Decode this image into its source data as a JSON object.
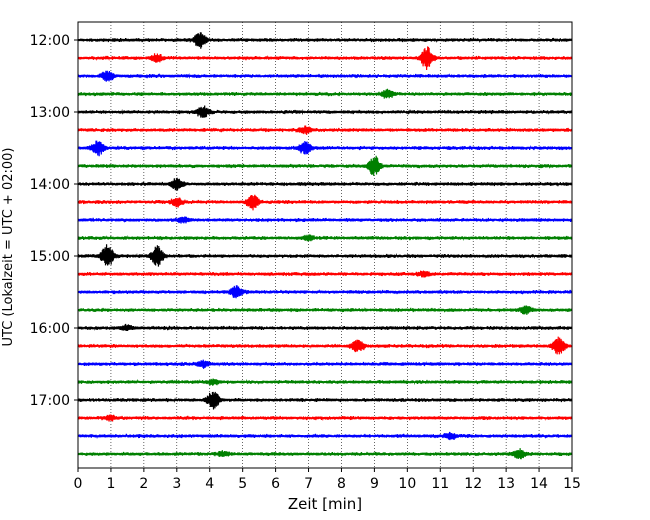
{
  "chart_data": {
    "type": "line",
    "title": "",
    "xlabel": "Zeit  [min]",
    "ylabel": "UTC (Lokalzeit = UTC + 02:00)",
    "xlim": [
      0,
      15
    ],
    "x_ticks": [
      "0",
      "1",
      "2",
      "3",
      "4",
      "5",
      "6",
      "7",
      "8",
      "9",
      "10",
      "11",
      "12",
      "13",
      "14",
      "15"
    ],
    "y_ticks": [
      "12:00",
      "13:00",
      "14:00",
      "15:00",
      "16:00",
      "17:00"
    ],
    "grid": "vertical dotted",
    "trace_interval_minutes": 15,
    "trace_colors": [
      "#000000",
      "#ff0000",
      "#0000ff",
      "#008000"
    ],
    "traces": [
      {
        "start": "12:00",
        "color": "#000000",
        "events": [
          [
            3.7,
            1.0
          ]
        ]
      },
      {
        "start": "12:15",
        "color": "#ff0000",
        "events": [
          [
            2.4,
            0.5
          ],
          [
            10.6,
            1.4
          ]
        ]
      },
      {
        "start": "12:30",
        "color": "#0000ff",
        "events": [
          [
            0.9,
            0.6
          ]
        ]
      },
      {
        "start": "12:45",
        "color": "#008000",
        "events": [
          [
            9.4,
            0.5
          ]
        ]
      },
      {
        "start": "13:00",
        "color": "#000000",
        "events": [
          [
            3.8,
            0.7
          ]
        ]
      },
      {
        "start": "13:15",
        "color": "#ff0000",
        "events": [
          [
            6.9,
            0.4
          ]
        ]
      },
      {
        "start": "13:30",
        "color": "#0000ff",
        "events": [
          [
            0.6,
            0.9
          ],
          [
            6.9,
            0.8
          ]
        ]
      },
      {
        "start": "13:45",
        "color": "#008000",
        "events": [
          [
            9.0,
            1.3
          ]
        ]
      },
      {
        "start": "14:00",
        "color": "#000000",
        "events": [
          [
            3.0,
            0.7
          ]
        ]
      },
      {
        "start": "14:15",
        "color": "#ff0000",
        "events": [
          [
            3.0,
            0.5
          ],
          [
            5.3,
            1.0
          ]
        ]
      },
      {
        "start": "14:30",
        "color": "#0000ff",
        "events": [
          [
            3.2,
            0.3
          ]
        ]
      },
      {
        "start": "14:45",
        "color": "#008000",
        "events": [
          [
            7.0,
            0.3
          ]
        ]
      },
      {
        "start": "15:00",
        "color": "#000000",
        "events": [
          [
            0.9,
            1.6
          ],
          [
            2.4,
            1.3
          ]
        ]
      },
      {
        "start": "15:15",
        "color": "#ff0000",
        "events": [
          [
            10.5,
            0.3
          ]
        ]
      },
      {
        "start": "15:30",
        "color": "#0000ff",
        "events": [
          [
            4.8,
            0.8
          ]
        ]
      },
      {
        "start": "15:45",
        "color": "#008000",
        "events": [
          [
            13.6,
            0.5
          ]
        ]
      },
      {
        "start": "16:00",
        "color": "#000000",
        "events": [
          [
            1.5,
            0.3
          ]
        ]
      },
      {
        "start": "16:15",
        "color": "#ff0000",
        "events": [
          [
            8.5,
            0.8
          ],
          [
            14.6,
            1.1
          ]
        ]
      },
      {
        "start": "16:30",
        "color": "#0000ff",
        "events": [
          [
            3.8,
            0.4
          ]
        ]
      },
      {
        "start": "16:45",
        "color": "#008000",
        "events": [
          [
            4.1,
            0.3
          ]
        ]
      },
      {
        "start": "17:00",
        "color": "#000000",
        "events": [
          [
            4.1,
            1.2
          ]
        ]
      },
      {
        "start": "17:15",
        "color": "#ff0000",
        "events": [
          [
            1.0,
            0.3
          ]
        ]
      },
      {
        "start": "17:30",
        "color": "#0000ff",
        "events": [
          [
            11.3,
            0.4
          ]
        ]
      },
      {
        "start": "17:45",
        "color": "#008000",
        "events": [
          [
            4.4,
            0.3
          ],
          [
            13.4,
            0.6
          ]
        ]
      }
    ]
  }
}
